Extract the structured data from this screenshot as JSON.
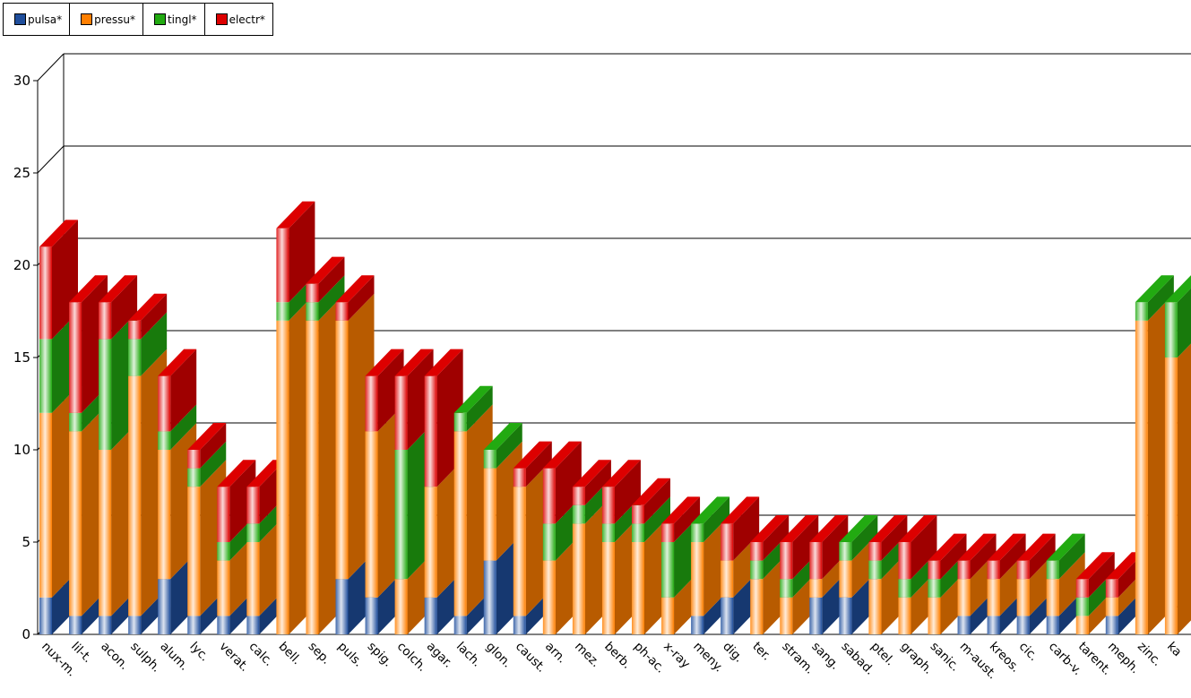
{
  "chart_data": {
    "type": "bar",
    "stacked": true,
    "style": "3d",
    "legend_position": "top-left",
    "grid": true,
    "ylim": [
      0,
      30
    ],
    "yticks": [
      0,
      5,
      10,
      15,
      20,
      25,
      30
    ],
    "categories": [
      "nux-m.",
      "lil-t.",
      "acon.",
      "sulph.",
      "alum.",
      "lyc.",
      "verat.",
      "calc.",
      "bell.",
      "sep.",
      "puls.",
      "spig.",
      "colch.",
      "agar.",
      "lach.",
      "glon.",
      "caust.",
      "arn.",
      "mez.",
      "berb.",
      "ph-ac.",
      "x-ray",
      "meny.",
      "dig.",
      "ter.",
      "stram.",
      "sang.",
      "sabad.",
      "ptel.",
      "graph.",
      "sanic.",
      "m-aust.",
      "kreos.",
      "cic.",
      "carb-v.",
      "tarent.",
      "meph.",
      "zinc.",
      "ka"
    ],
    "series": [
      {
        "name": "pulsa*",
        "color": "#1f4e9c",
        "values": [
          2,
          1,
          1,
          1,
          3,
          1,
          1,
          1,
          0,
          0,
          3,
          2,
          0,
          2,
          1,
          4,
          1,
          0,
          0,
          0,
          0,
          0,
          1,
          2,
          0,
          0,
          2,
          2,
          0,
          0,
          0,
          1,
          1,
          1,
          1,
          0,
          1,
          0,
          0
        ]
      },
      {
        "name": "pressu*",
        "color": "#ff7f00",
        "values": [
          10,
          10,
          9,
          13,
          7,
          7,
          3,
          4,
          17,
          17,
          14,
          9,
          3,
          6,
          10,
          5,
          7,
          4,
          6,
          5,
          5,
          2,
          4,
          2,
          3,
          2,
          1,
          2,
          3,
          2,
          2,
          2,
          2,
          2,
          2,
          1,
          1,
          17,
          15
        ]
      },
      {
        "name": "tingl*",
        "color": "#22aa11",
        "values": [
          4,
          1,
          6,
          2,
          1,
          1,
          1,
          1,
          1,
          1,
          0,
          0,
          7,
          0,
          1,
          1,
          0,
          2,
          1,
          1,
          1,
          3,
          1,
          0,
          1,
          1,
          0,
          1,
          1,
          1,
          1,
          0,
          0,
          0,
          1,
          1,
          0,
          1,
          3
        ]
      },
      {
        "name": "electr*",
        "color": "#dd0000",
        "values": [
          5,
          6,
          2,
          1,
          3,
          1,
          3,
          2,
          4,
          1,
          1,
          3,
          4,
          6,
          0,
          0,
          1,
          3,
          1,
          2,
          1,
          1,
          0,
          2,
          1,
          2,
          2,
          0,
          1,
          2,
          1,
          1,
          1,
          1,
          0,
          1,
          1,
          0,
          0
        ]
      }
    ]
  }
}
